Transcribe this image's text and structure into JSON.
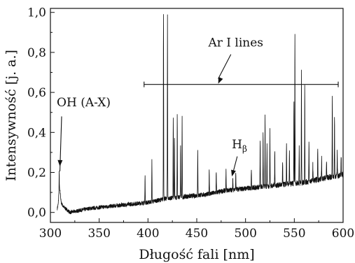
{
  "chart_data": {
    "type": "line",
    "title": "",
    "xlabel": "Długość fali [nm]",
    "ylabel": "Intensywność [j. a.]",
    "xlim": [
      300,
      600
    ],
    "ylim": [
      -0.05,
      1.02
    ],
    "x_ticks": [
      300,
      350,
      400,
      450,
      500,
      550,
      600
    ],
    "y_ticks": [
      0.0,
      0.2,
      0.4,
      0.6,
      0.8,
      1.0
    ],
    "x_tick_labels": [
      "300",
      "350",
      "400",
      "450",
      "500",
      "550",
      "600"
    ],
    "y_tick_labels": [
      "0,0",
      "0,2",
      "0,4",
      "0,6",
      "0,8",
      "1,0"
    ],
    "grid": false,
    "legend": "none",
    "line_color": "#111111",
    "series": [
      {
        "baseline": [
          [
            307,
            0.02
          ],
          [
            308,
            0.04
          ],
          [
            309,
            0.12
          ],
          [
            310,
            0.1
          ],
          [
            311,
            0.05
          ],
          [
            313,
            0.03
          ],
          [
            320,
            0.0
          ],
          [
            340,
            0.02
          ],
          [
            360,
            0.03
          ],
          [
            380,
            0.04
          ],
          [
            400,
            0.05
          ],
          [
            420,
            0.07
          ],
          [
            440,
            0.08
          ],
          [
            460,
            0.09
          ],
          [
            480,
            0.11
          ],
          [
            500,
            0.12
          ],
          [
            520,
            0.13
          ],
          [
            540,
            0.14
          ],
          [
            560,
            0.15
          ],
          [
            580,
            0.17
          ],
          [
            600,
            0.19
          ]
        ],
        "peaks": [
          [
            309.0,
            0.2
          ],
          [
            397.0,
            0.18
          ],
          [
            404.0,
            0.26
          ],
          [
            415.9,
            1.0
          ],
          [
            420.0,
            1.0
          ],
          [
            425.9,
            0.47
          ],
          [
            427.2,
            0.37
          ],
          [
            430.0,
            0.49
          ],
          [
            433.4,
            0.33
          ],
          [
            435.0,
            0.49
          ],
          [
            451.0,
            0.32
          ],
          [
            462.8,
            0.22
          ],
          [
            470.0,
            0.2
          ],
          [
            480.0,
            0.21
          ],
          [
            487.0,
            0.17
          ],
          [
            490.0,
            0.2
          ],
          [
            506.0,
            0.22
          ],
          [
            515.0,
            0.36
          ],
          [
            518.0,
            0.4
          ],
          [
            520.0,
            0.48
          ],
          [
            522.0,
            0.34
          ],
          [
            525.0,
            0.41
          ],
          [
            530.0,
            0.3
          ],
          [
            538.0,
            0.25
          ],
          [
            542.0,
            0.34
          ],
          [
            545.0,
            0.3
          ],
          [
            549.6,
            0.55
          ],
          [
            550.6,
            0.88
          ],
          [
            555.0,
            0.33
          ],
          [
            557.3,
            0.7
          ],
          [
            560.7,
            0.63
          ],
          [
            565.0,
            0.35
          ],
          [
            569.0,
            0.24
          ],
          [
            574.0,
            0.33
          ],
          [
            578.0,
            0.27
          ],
          [
            583.0,
            0.26
          ],
          [
            588.9,
            0.57
          ],
          [
            591.2,
            0.49
          ],
          [
            594.0,
            0.3
          ],
          [
            598.0,
            0.28
          ]
        ]
      }
    ],
    "annotations": [
      {
        "text": "OH (A-X)",
        "x": 309,
        "y": 0.2
      },
      {
        "text": "Ar I lines",
        "bracket_from": 396,
        "bracket_to": 595,
        "y": 0.64
      },
      {
        "text": "H",
        "subscript": "β",
        "x": 486,
        "y": 0.17
      }
    ]
  }
}
